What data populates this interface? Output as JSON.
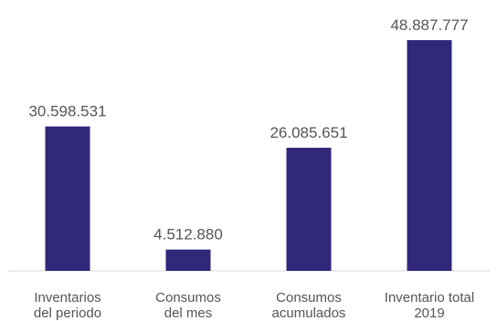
{
  "chart_data": {
    "type": "bar",
    "title": "",
    "xlabel": "",
    "ylabel": "",
    "categories": [
      [
        "Inventarios",
        "del periodo"
      ],
      [
        "Consumos",
        "del mes"
      ],
      [
        "Consumos",
        "acumulados"
      ],
      [
        "Inventario total",
        "2019"
      ]
    ],
    "values": [
      30598531,
      4512880,
      26085651,
      48887777
    ],
    "data_labels": [
      "30.598.531",
      "4.512.880",
      "26.085.651",
      "48.887.777"
    ],
    "ylim": [
      0,
      48887777
    ],
    "grid": false,
    "bar_color": "#31287a",
    "axis_color": "#d9d9d9"
  }
}
